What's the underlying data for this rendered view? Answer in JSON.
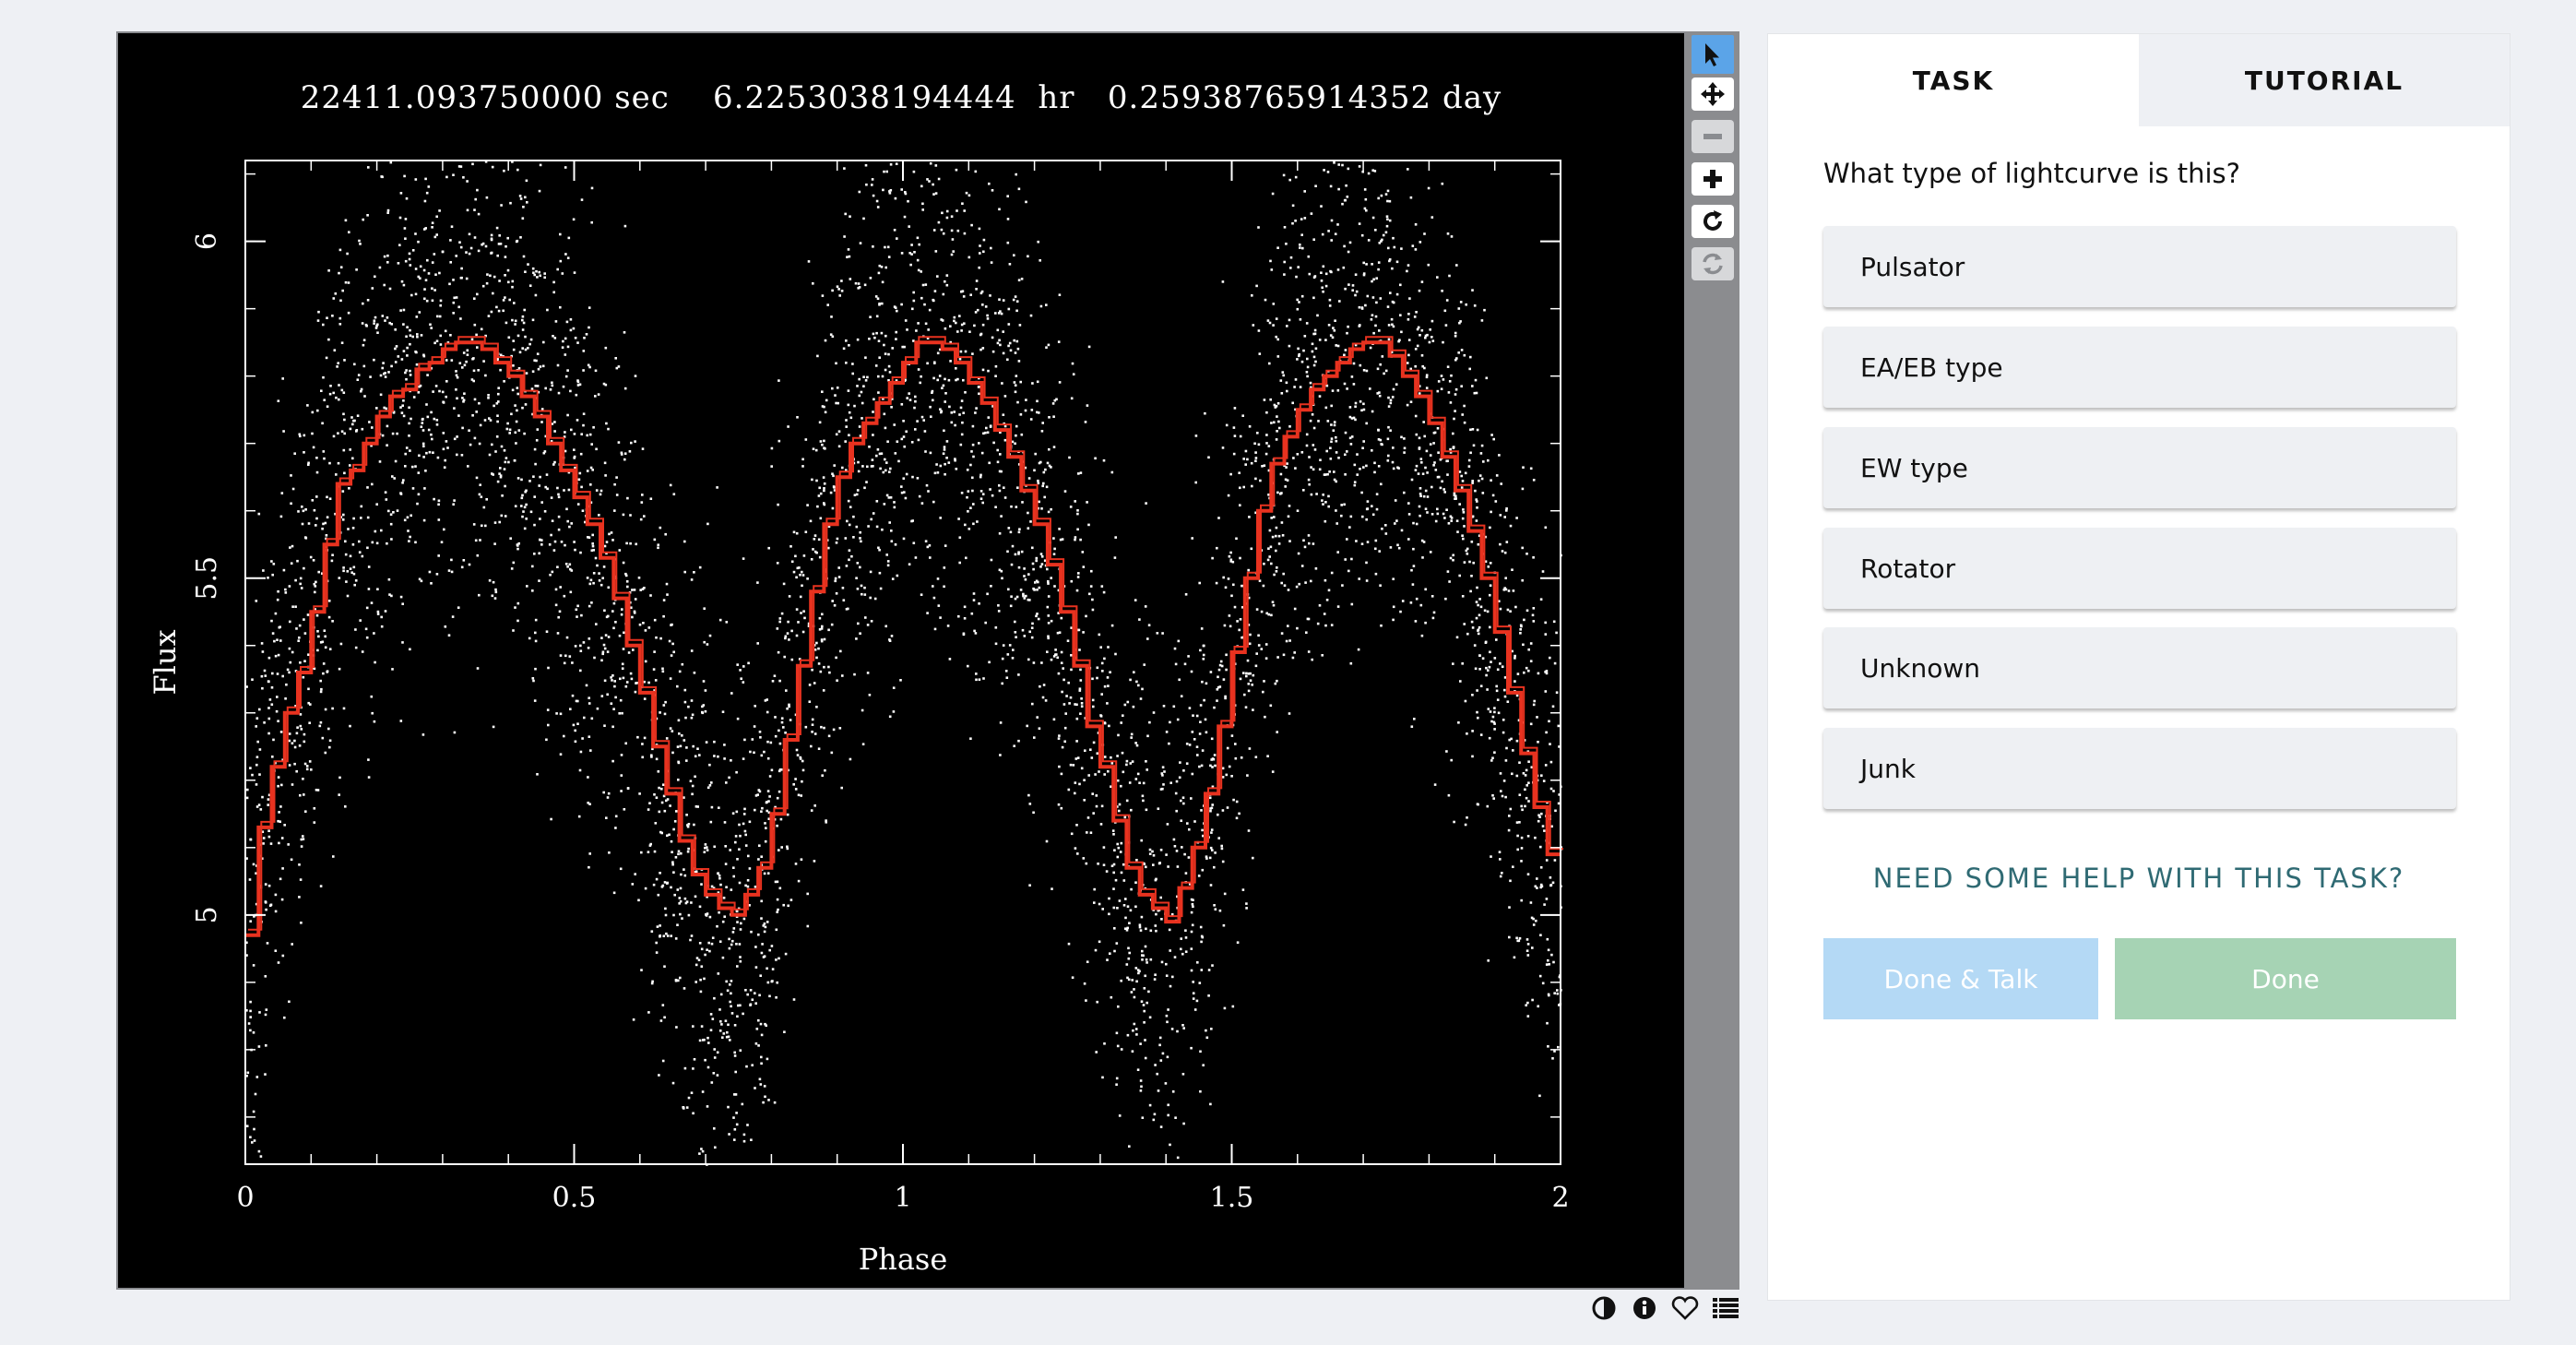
{
  "viewer": {
    "plot_title": "22411.093750000 sec    6.2253038194444  hr   0.25938765914352 day",
    "toolbar_icons": [
      "pointer-icon",
      "move-icon",
      "zoom-out-icon",
      "zoom-in-icon",
      "rotate-icon",
      "reset-icon"
    ],
    "footer_icons": [
      "invert-icon",
      "info-icon",
      "favorite-icon",
      "collections-icon"
    ]
  },
  "chart_data": {
    "type": "scatter",
    "xlabel": "Phase",
    "ylabel": "Flux",
    "xlim": [
      0,
      2
    ],
    "ylim": [
      4.63,
      6.12
    ],
    "xticks": [
      0,
      0.5,
      1,
      1.5,
      2
    ],
    "xtick_labels": [
      "0",
      "0.5",
      "1",
      "1.5",
      "2"
    ],
    "yticks": [
      5,
      5.5,
      6
    ],
    "ytick_labels": [
      "5",
      "5.5",
      "6"
    ],
    "points_color": "#ffffff",
    "binned_color": "#e8321f",
    "binned_mean": {
      "x": [
        0,
        0.02,
        0.04,
        0.06,
        0.08,
        0.1,
        0.12,
        0.14,
        0.16,
        0.18,
        0.2,
        0.22,
        0.24,
        0.26,
        0.28,
        0.3,
        0.32,
        0.34,
        0.36,
        0.38,
        0.4,
        0.42,
        0.44,
        0.46,
        0.48,
        0.5,
        0.52,
        0.54,
        0.56,
        0.58,
        0.6,
        0.62,
        0.64,
        0.66,
        0.68,
        0.7,
        0.72,
        0.74,
        0.76,
        0.78,
        0.8,
        0.82,
        0.84,
        0.86,
        0.88,
        0.9,
        0.92,
        0.94,
        0.96,
        0.98,
        1.0,
        1.02,
        1.04,
        1.06,
        1.08,
        1.1,
        1.12,
        1.14,
        1.16,
        1.18,
        1.2,
        1.22,
        1.24,
        1.26,
        1.28,
        1.3,
        1.32,
        1.34,
        1.36,
        1.38,
        1.4,
        1.42,
        1.44,
        1.46,
        1.48,
        1.5,
        1.52,
        1.54,
        1.56,
        1.58,
        1.6,
        1.62,
        1.64,
        1.66,
        1.68,
        1.7,
        1.72,
        1.74,
        1.76,
        1.78,
        1.8,
        1.82,
        1.84,
        1.86,
        1.88,
        1.9,
        1.92,
        1.94,
        1.96,
        1.98
      ],
      "y": [
        4.97,
        5.13,
        5.22,
        5.3,
        5.36,
        5.45,
        5.55,
        5.64,
        5.66,
        5.7,
        5.74,
        5.77,
        5.78,
        5.81,
        5.82,
        5.84,
        5.85,
        5.85,
        5.84,
        5.82,
        5.8,
        5.77,
        5.74,
        5.7,
        5.66,
        5.62,
        5.58,
        5.53,
        5.47,
        5.4,
        5.33,
        5.25,
        5.18,
        5.11,
        5.06,
        5.03,
        5.01,
        5.0,
        5.03,
        5.07,
        5.15,
        5.26,
        5.37,
        5.48,
        5.58,
        5.65,
        5.7,
        5.73,
        5.76,
        5.79,
        5.82,
        5.85,
        5.85,
        5.84,
        5.82,
        5.79,
        5.76,
        5.72,
        5.68,
        5.63,
        5.58,
        5.52,
        5.45,
        5.37,
        5.28,
        5.22,
        5.14,
        5.07,
        5.03,
        5.01,
        4.99,
        5.04,
        5.1,
        5.18,
        5.28,
        5.39,
        5.5,
        5.6,
        5.67,
        5.71,
        5.75,
        5.78,
        5.8,
        5.82,
        5.84,
        5.85,
        5.85,
        5.83,
        5.8,
        5.77,
        5.73,
        5.68,
        5.63,
        5.57,
        5.5,
        5.42,
        5.33,
        5.24,
        5.16,
        5.09
      ]
    }
  },
  "panel": {
    "tabs": [
      {
        "label": "TASK",
        "active": true
      },
      {
        "label": "TUTORIAL",
        "active": false
      }
    ],
    "question": "What type of lightcurve is this?",
    "answers": [
      "Pulsator",
      "EA/EB type",
      "EW type",
      "Rotator",
      "Unknown",
      "Junk"
    ],
    "help_label": "NEED SOME HELP WITH THIS TASK?",
    "done_talk_label": "Done & Talk",
    "done_label": "Done"
  }
}
